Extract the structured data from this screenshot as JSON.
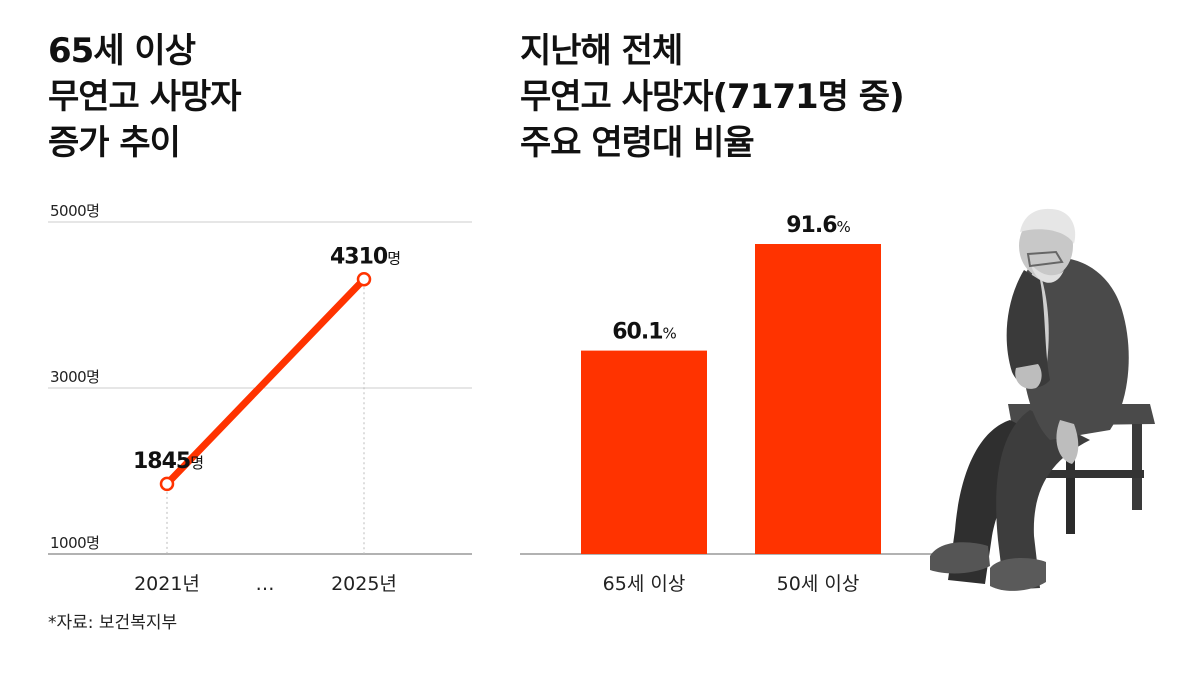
{
  "left_title": [
    "65세 이상",
    "무연고 사망자",
    "증가 추이"
  ],
  "right_title": [
    "지난해 전체",
    "무연고 사망자(7171명 중)",
    "주요 연령대 비율"
  ],
  "source": "*자료: 보건복지부",
  "colors": {
    "accent": "#ff3300",
    "grid": "#cccccc",
    "axis": "#999999"
  },
  "chart_data": [
    {
      "type": "line",
      "categories": [
        "2021년",
        "…",
        "2025년"
      ],
      "points": [
        {
          "x": "2021년",
          "value": 1845,
          "label": "1845",
          "unit": "명"
        },
        {
          "x": "2025년",
          "value": 4310,
          "label": "4310",
          "unit": "명"
        }
      ],
      "yticks": [
        "5000명",
        "3000명",
        "1000명"
      ],
      "ylim": [
        1000,
        5000
      ],
      "grid": true
    },
    {
      "type": "bar",
      "categories": [
        "65세 이상",
        "50세 이상"
      ],
      "values": [
        60.1,
        91.6
      ],
      "value_labels": [
        "60.1",
        "91.6"
      ],
      "unit": "%"
    }
  ]
}
